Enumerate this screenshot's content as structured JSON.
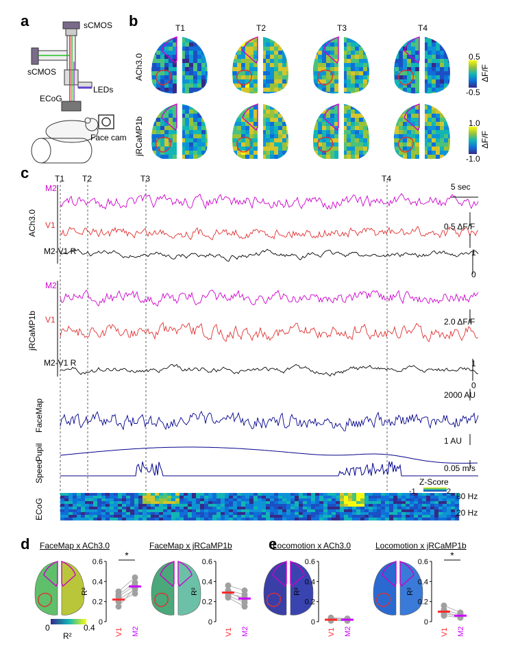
{
  "panels": {
    "a": "a",
    "b": "b",
    "c": "c",
    "d": "d",
    "e": "e"
  },
  "panel_a": {
    "camera_top": "sCMOS",
    "camera_side": "sCMOS",
    "leds": "LEDs",
    "ecog": "ECoG",
    "face_cam": "Face cam"
  },
  "panel_b": {
    "times": [
      "T1",
      "T2",
      "T3",
      "T4"
    ],
    "rows": [
      {
        "label": "ACh3.0",
        "cb_max": "0.5",
        "cb_min": "-0.5",
        "cb_label": "ΔF/F"
      },
      {
        "label": "jRCaMP1b",
        "cb_max": "1.0",
        "cb_min": "-1.0",
        "cb_label": "ΔF/F"
      }
    ]
  },
  "panel_c": {
    "markers": [
      "T1",
      "T2",
      "T3",
      "T4"
    ],
    "time_scale": "5 sec",
    "ach": {
      "group": "ACh3.0",
      "m2": "M2",
      "v1": "V1",
      "r": "M2-V1 R",
      "scale": "0.5 ΔF/F",
      "r_top": "1",
      "r_bot": "0"
    },
    "rcamp": {
      "group": "jRCaMP1b",
      "m2": "M2",
      "v1": "V1",
      "r": "M2-V1 R",
      "scale": "2.0 ΔF/F",
      "r_top": "1",
      "r_bot": "0"
    },
    "facemap": {
      "label": "FaceMap",
      "scale": "2000 AU"
    },
    "pupil": {
      "label": "Pupil",
      "scale": "1 AU"
    },
    "speed": {
      "label": "Speed",
      "scale": "0.05 m/s"
    },
    "ecog": {
      "label": "ECoG",
      "z_title": "Z-Score",
      "z_min": "-1",
      "z_max": "2",
      "f_hi": "80 Hz",
      "f_lo": "20 Hz"
    }
  },
  "panel_d": {
    "title1": "FaceMap x ACh3.0",
    "title2": "FaceMap x jRCaMP1b",
    "cb_min": "0",
    "cb_max": "0.4",
    "cb_label": "R²",
    "ylabel": "R²",
    "ticks": [
      "0.6",
      "0.4",
      "0.2",
      "0"
    ],
    "x1": "V1",
    "x2": "M2",
    "sig": "*"
  },
  "panel_e": {
    "title1": "Locomotion x ACh3.0",
    "title2": "Locomotion x jRCaMP1b",
    "ylabel": "R²",
    "ticks": [
      "0.6",
      "0.4",
      "0.2",
      "0"
    ],
    "x1": "V1",
    "x2": "M2",
    "sig": "*"
  },
  "chart_data": [
    {
      "type": "scatter",
      "title": "FaceMap x ACh3.0",
      "ylabel": "R²",
      "ylim": [
        0,
        0.6
      ],
      "categories": [
        "V1",
        "M2"
      ],
      "pairs": [
        [
          0.3,
          0.44
        ],
        [
          0.27,
          0.39
        ],
        [
          0.22,
          0.32
        ],
        [
          0.2,
          0.28
        ],
        [
          0.15,
          0.34
        ],
        [
          0.25,
          0.36
        ]
      ],
      "means": [
        0.22,
        0.35
      ],
      "significance": "*"
    },
    {
      "type": "scatter",
      "title": "FaceMap x jRCaMP1b",
      "ylabel": "R²",
      "ylim": [
        0,
        0.6
      ],
      "categories": [
        "V1",
        "M2"
      ],
      "pairs": [
        [
          0.36,
          0.31
        ],
        [
          0.31,
          0.27
        ],
        [
          0.29,
          0.22
        ],
        [
          0.26,
          0.19
        ],
        [
          0.24,
          0.15
        ],
        [
          0.28,
          0.24
        ]
      ],
      "means": [
        0.29,
        0.23
      ]
    },
    {
      "type": "scatter",
      "title": "Locomotion x ACh3.0",
      "ylabel": "R²",
      "ylim": [
        0,
        0.6
      ],
      "categories": [
        "V1",
        "M2"
      ],
      "pairs": [
        [
          0.03,
          0.03
        ],
        [
          0.02,
          0.02
        ],
        [
          0.01,
          0.01
        ],
        [
          0.04,
          0.03
        ],
        [
          0.02,
          0.01
        ]
      ],
      "means": [
        0.02,
        0.02
      ]
    },
    {
      "type": "scatter",
      "title": "Locomotion x jRCaMP1b",
      "ylabel": "R²",
      "ylim": [
        0,
        0.6
      ],
      "categories": [
        "V1",
        "M2"
      ],
      "pairs": [
        [
          0.16,
          0.09
        ],
        [
          0.12,
          0.07
        ],
        [
          0.1,
          0.05
        ],
        [
          0.08,
          0.05
        ],
        [
          0.06,
          0.04
        ]
      ],
      "means": [
        0.1,
        0.06
      ],
      "significance": "*"
    }
  ],
  "colors": {
    "m2": "#cc00cc",
    "v1": "#e03030",
    "r": "#000000",
    "behavior": "#00008b",
    "mean_v1": "#ff2a2a",
    "mean_m2": "#cc00ff",
    "dots": "#a0a0a0"
  }
}
